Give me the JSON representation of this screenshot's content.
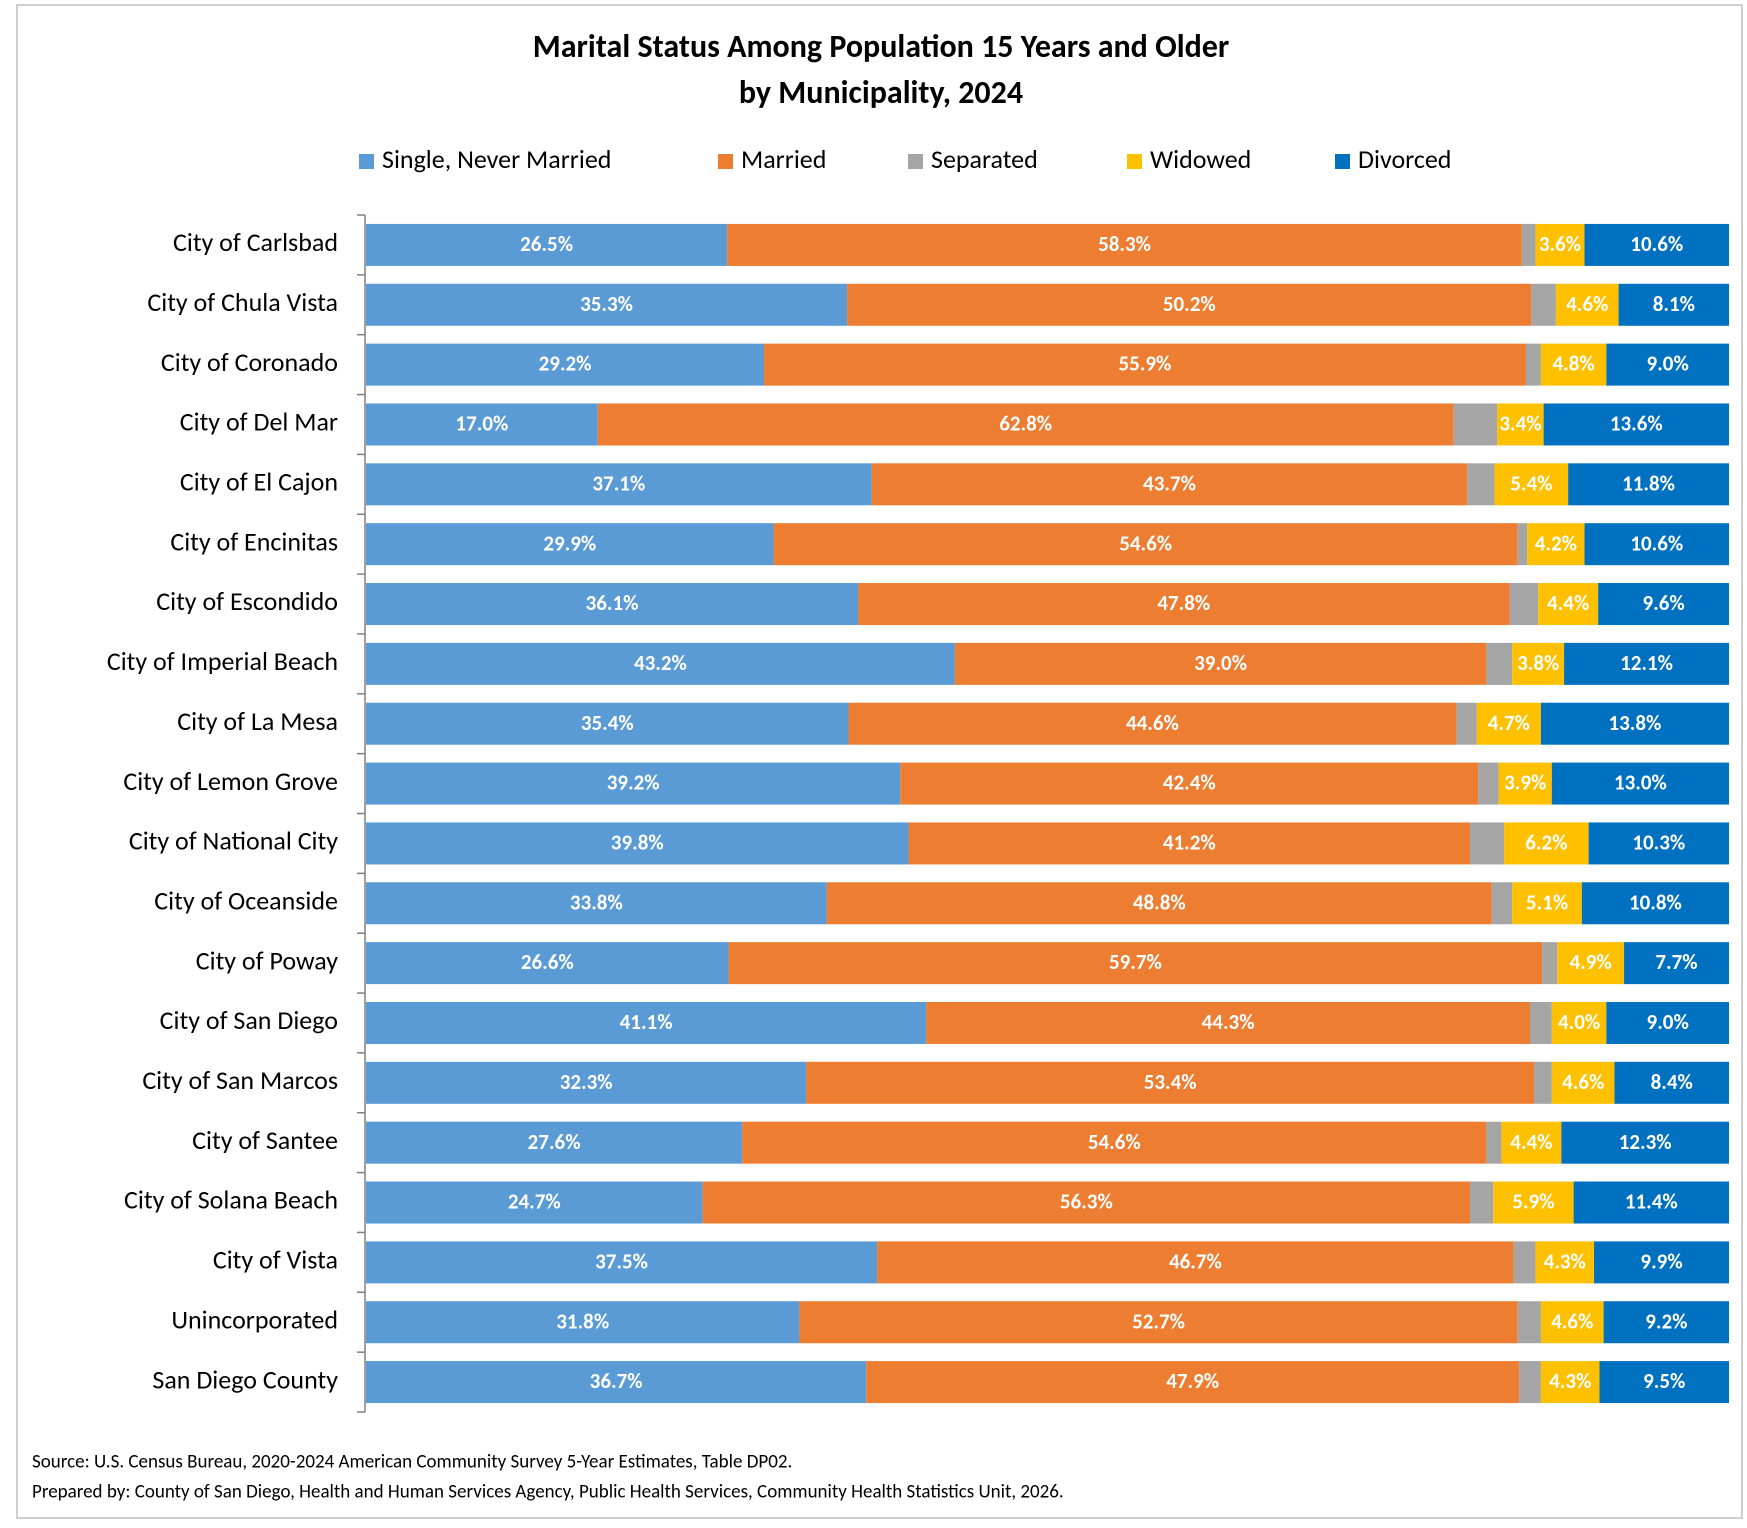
{
  "chart_data": {
    "type": "stacked-bar-horizontal",
    "title": [
      "Marital Status Among Population 15 Years and Older",
      "by Municipality, 2024"
    ],
    "categories": [
      "City of Carlsbad",
      "City of Chula Vista",
      "City of Coronado",
      "City of Del Mar",
      "City of El Cajon",
      "City of Encinitas",
      "City of Escondido",
      "City of Imperial Beach",
      "City of La Mesa",
      "City of Lemon Grove",
      "City of National City",
      "City of Oceanside",
      "City of Poway",
      "City of San Diego",
      "City of San Marcos",
      "City of Santee",
      "City of Solana Beach",
      "City of Vista",
      "Unincorporated",
      "San Diego County"
    ],
    "xlim": [
      0,
      100
    ],
    "series": [
      {
        "name": "Single, Never Married",
        "color": "#5b9bd5",
        "values": [
          26.5,
          35.3,
          29.2,
          17.0,
          37.1,
          29.9,
          36.1,
          43.2,
          35.4,
          39.2,
          39.8,
          33.8,
          26.6,
          41.1,
          32.3,
          27.6,
          24.7,
          37.5,
          31.8,
          36.7
        ],
        "value_labels": [
          "26.5%",
          "35.3%",
          "29.2%",
          "17.0%",
          "37.1%",
          "29.9%",
          "36.1%",
          "43.2%",
          "35.4%",
          "39.2%",
          "39.8%",
          "33.8%",
          "26.6%",
          "41.1%",
          "32.3%",
          "27.6%",
          "24.7%",
          "37.5%",
          "31.8%",
          "36.7%"
        ]
      },
      {
        "name": "Married",
        "color": "#ed7d31",
        "values": [
          58.3,
          50.2,
          55.9,
          62.8,
          43.7,
          54.6,
          47.8,
          39.0,
          44.6,
          42.4,
          41.2,
          48.8,
          59.7,
          44.3,
          53.4,
          54.6,
          56.3,
          46.7,
          52.7,
          47.9
        ],
        "value_labels": [
          "58.3%",
          "50.2%",
          "55.9%",
          "62.8%",
          "43.7%",
          "54.6%",
          "47.8%",
          "39.0%",
          "44.6%",
          "42.4%",
          "41.2%",
          "48.8%",
          "59.7%",
          "44.3%",
          "53.4%",
          "54.6%",
          "56.3%",
          "46.7%",
          "52.7%",
          "47.9%"
        ]
      },
      {
        "name": "Separated",
        "color": "#a5a5a5",
        "values": [
          1.0,
          1.8,
          1.1,
          3.2,
          2.0,
          0.7,
          2.1,
          1.9,
          1.5,
          1.5,
          2.5,
          1.5,
          1.1,
          1.6,
          1.3,
          1.1,
          1.7,
          1.6,
          1.7,
          1.6
        ]
      },
      {
        "name": "Widowed",
        "color": "#ffc000",
        "values": [
          3.6,
          4.6,
          4.8,
          3.4,
          5.4,
          4.2,
          4.4,
          3.8,
          4.7,
          3.9,
          6.2,
          5.1,
          4.9,
          4.0,
          4.6,
          4.4,
          5.9,
          4.3,
          4.6,
          4.3
        ],
        "value_labels": [
          "3.6%",
          "4.6%",
          "4.8%",
          "3.4%",
          "5.4%",
          "4.2%",
          "4.4%",
          "3.8%",
          "4.7%",
          "3.9%",
          "6.2%",
          "5.1%",
          "4.9%",
          "4.0%",
          "4.6%",
          "4.4%",
          "5.9%",
          "4.3%",
          "4.6%",
          "4.3%"
        ]
      },
      {
        "name": "Divorced",
        "color": "#0070c0",
        "values": [
          10.6,
          8.1,
          9.0,
          13.6,
          11.8,
          10.6,
          9.6,
          12.1,
          13.8,
          13.0,
          10.3,
          10.8,
          7.7,
          9.0,
          8.4,
          12.3,
          11.4,
          9.9,
          9.2,
          9.5
        ],
        "value_labels": [
          "10.6%",
          "8.1%",
          "9.0%",
          "13.6%",
          "11.8%",
          "10.6%",
          "9.6%",
          "12.1%",
          "13.8%",
          "13.0%",
          "10.3%",
          "10.8%",
          "7.7%",
          "9.0%",
          "8.4%",
          "12.3%",
          "11.4%",
          "9.9%",
          "9.2%",
          "9.5%"
        ]
      }
    ],
    "notes": [
      "Source: U.S. Census Bureau, 2020-2024 American Community Survey 5-Year Estimates, Table DP02.",
      "Prepared by: County of San Diego, Health and Human Services Agency, Public Health Services, Community Health Statistics Unit, 2026."
    ]
  }
}
